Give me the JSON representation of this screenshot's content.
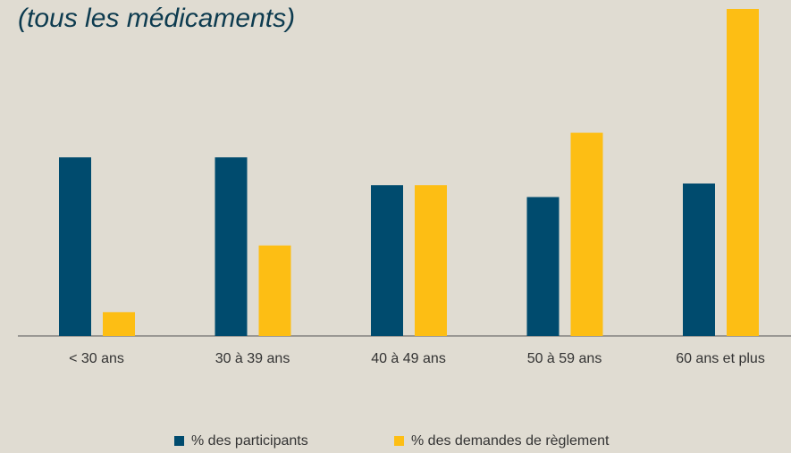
{
  "chart_data": {
    "type": "bar",
    "title": "(tous les médicaments)",
    "categories": [
      "< 30 ans",
      "30 à 39 ans",
      "40 à 49 ans",
      "50 à 59 ans",
      "60 ans et plus"
    ],
    "series": [
      {
        "name": "% des participants",
        "color": "#004b6e",
        "values": [
          22.5,
          22.5,
          19,
          17.5,
          19.2
        ]
      },
      {
        "name": "% des demandes de règlement",
        "color": "#fdbe14",
        "values": [
          3,
          11.4,
          19,
          25.6,
          41.2
        ]
      }
    ],
    "ylim": [
      0,
      41.2
    ]
  }
}
